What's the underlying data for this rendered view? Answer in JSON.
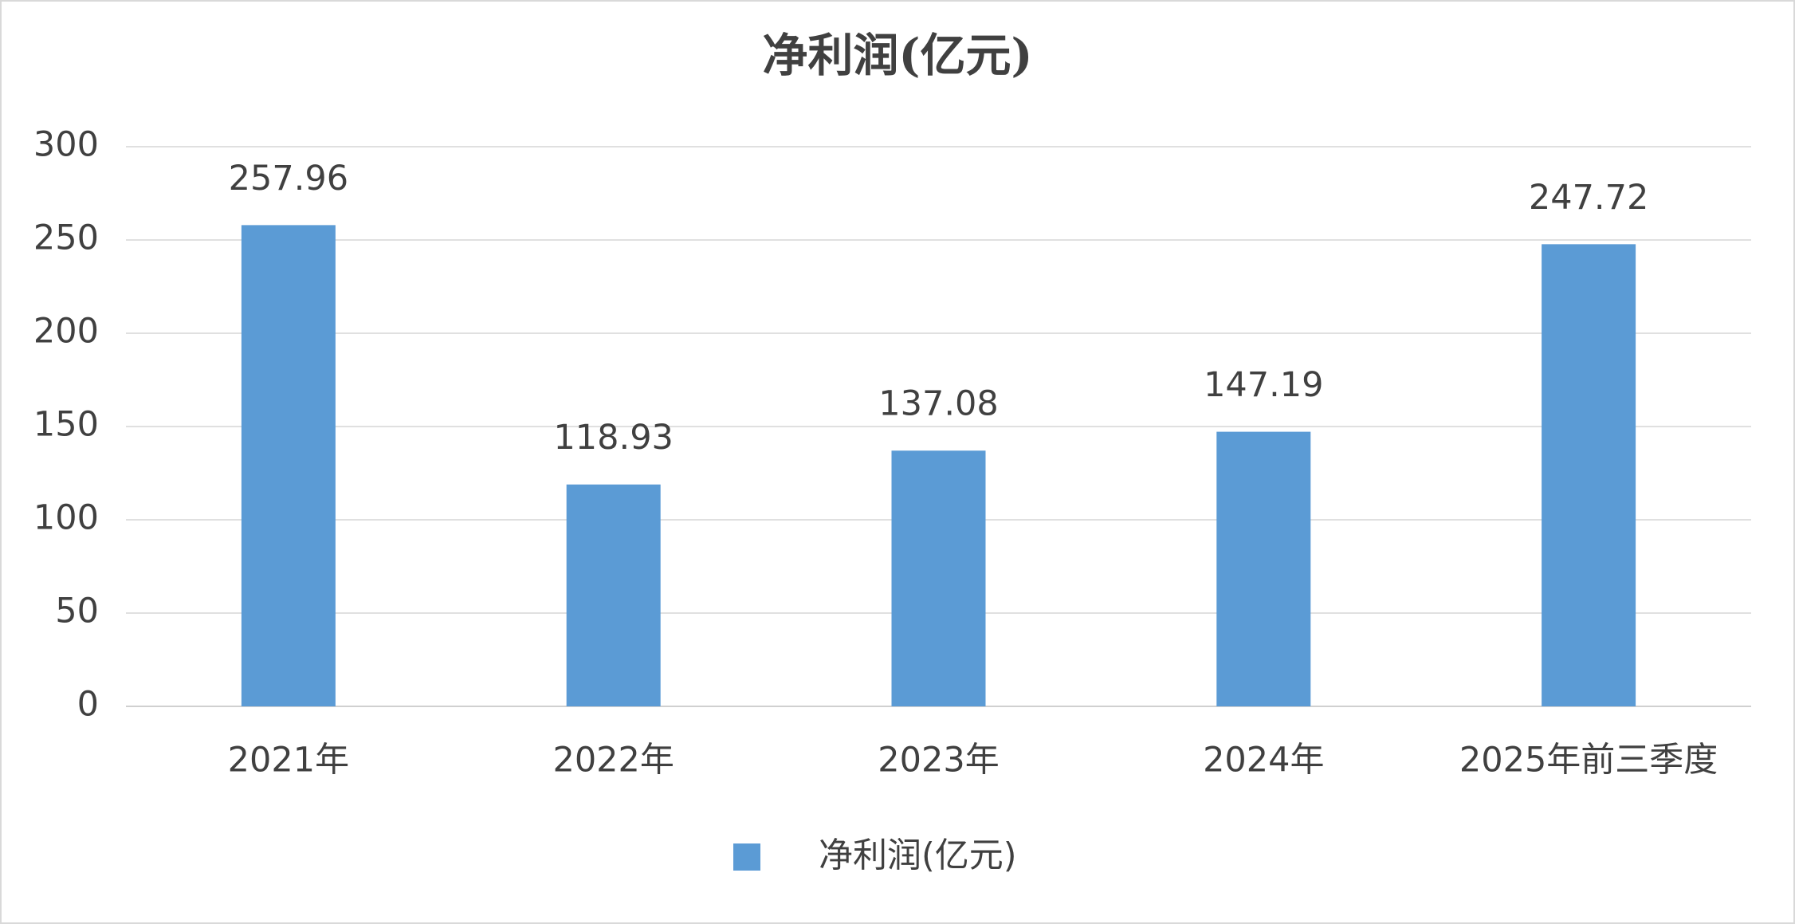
{
  "chart_data": {
    "type": "bar",
    "title": "净利润(亿元)",
    "categories": [
      "2021年",
      "2022年",
      "2023年",
      "2024年",
      "2025年前三季度"
    ],
    "series": [
      {
        "name": "净利润(亿元)",
        "color": "#5b9bd5",
        "values": [
          257.96,
          118.93,
          137.08,
          147.19,
          247.72
        ]
      }
    ],
    "ylim": [
      0,
      300
    ],
    "yticks": [
      0,
      50,
      100,
      150,
      200,
      250,
      300
    ],
    "grid": true,
    "legend": "bottom"
  }
}
